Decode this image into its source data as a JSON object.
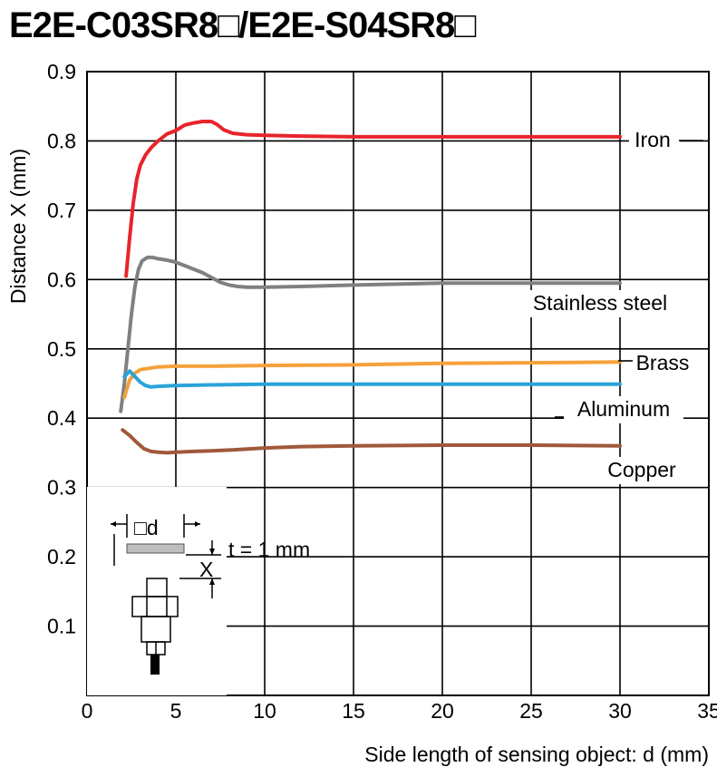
{
  "chart_data": {
    "type": "line",
    "title": "E2E-C03SR8□/E2E-S04SR8□",
    "xlabel": "Side length of sensing object: d (mm)",
    "ylabel": "Distance X (mm)",
    "xlim": [
      0,
      35
    ],
    "ylim": [
      0,
      0.9
    ],
    "xticks": [
      "0",
      "5",
      "10",
      "15",
      "20",
      "25",
      "30",
      "35"
    ],
    "yticks": [
      "0.1",
      "0.2",
      "0.3",
      "0.4",
      "0.5",
      "0.6",
      "0.7",
      "0.8",
      "0.9"
    ],
    "grid": true,
    "series": [
      {
        "name": "Iron",
        "color": "#e8242b",
        "x": [
          2.2,
          2.4,
          2.6,
          2.8,
          3.0,
          3.3,
          3.6,
          4.0,
          4.5,
          5.0,
          5.5,
          6.0,
          6.5,
          7.0,
          7.3,
          7.7,
          8.2,
          9.0,
          10,
          12,
          15,
          20,
          25,
          30
        ],
        "y": [
          0.605,
          0.66,
          0.71,
          0.745,
          0.765,
          0.78,
          0.79,
          0.8,
          0.81,
          0.815,
          0.823,
          0.826,
          0.828,
          0.828,
          0.824,
          0.816,
          0.811,
          0.809,
          0.808,
          0.807,
          0.806,
          0.806,
          0.806,
          0.806
        ]
      },
      {
        "name": "Stainless steel",
        "color": "#808080",
        "x": [
          1.9,
          2.1,
          2.3,
          2.5,
          2.7,
          2.9,
          3.1,
          3.4,
          3.7,
          4.0,
          4.5,
          5.0,
          5.5,
          6.0,
          6.5,
          7.0,
          7.5,
          8.0,
          8.5,
          9.0,
          10,
          12,
          15,
          20,
          25,
          30
        ],
        "y": [
          0.41,
          0.45,
          0.5,
          0.55,
          0.59,
          0.615,
          0.627,
          0.632,
          0.632,
          0.63,
          0.628,
          0.625,
          0.62,
          0.615,
          0.61,
          0.603,
          0.596,
          0.592,
          0.59,
          0.589,
          0.589,
          0.59,
          0.592,
          0.595,
          0.595,
          0.595
        ]
      },
      {
        "name": "Brass",
        "color": "#f5a13a",
        "x": [
          2.1,
          2.4,
          2.7,
          3.0,
          3.5,
          4.0,
          5.0,
          7.0,
          10,
          15,
          20,
          25,
          30
        ],
        "y": [
          0.43,
          0.455,
          0.465,
          0.47,
          0.472,
          0.474,
          0.475,
          0.475,
          0.476,
          0.477,
          0.479,
          0.48,
          0.481
        ]
      },
      {
        "name": "Aluminum",
        "color": "#29a3d9",
        "x": [
          2.1,
          2.4,
          2.7,
          3.0,
          3.3,
          3.6,
          4.0,
          5.0,
          7.0,
          10,
          15,
          20,
          25,
          30
        ],
        "y": [
          0.46,
          0.468,
          0.46,
          0.452,
          0.447,
          0.445,
          0.446,
          0.447,
          0.448,
          0.449,
          0.449,
          0.449,
          0.449,
          0.449
        ]
      },
      {
        "name": "Copper",
        "color": "#a0593a",
        "x": [
          2.0,
          2.4,
          2.8,
          3.2,
          3.6,
          4.0,
          4.5,
          5.0,
          6.0,
          7.0,
          8.0,
          10,
          12,
          15,
          20,
          25,
          30
        ],
        "y": [
          0.383,
          0.375,
          0.365,
          0.356,
          0.352,
          0.351,
          0.35,
          0.351,
          0.352,
          0.353,
          0.354,
          0.357,
          0.359,
          0.36,
          0.361,
          0.361,
          0.36
        ]
      }
    ]
  },
  "inset": {
    "square_d_label": "□d",
    "x_label": "X",
    "thickness_label": "t = 1 mm"
  }
}
